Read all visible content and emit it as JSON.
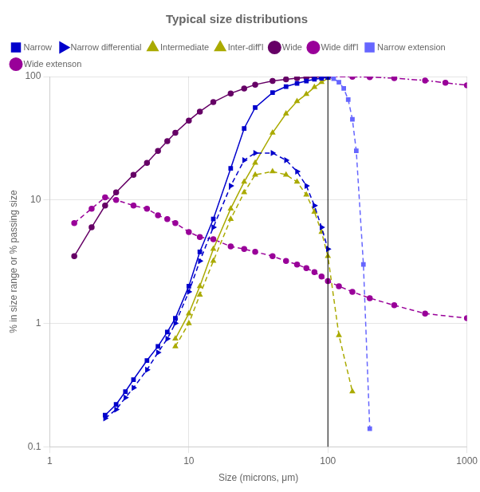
{
  "chart_data": {
    "type": "line",
    "title": "Typical size distributions",
    "x_label": "Size (microns, μm)",
    "y_label": "% in size range or % passing size",
    "log": true,
    "xlim": [
      1,
      1000
    ],
    "ylim": [
      0.1,
      100
    ],
    "xticks": [
      1,
      10,
      100,
      1000
    ],
    "yticks": [
      0.1,
      1,
      10,
      100
    ],
    "grid": true,
    "legend": "upper left",
    "vertical_lines": [
      100
    ],
    "series": [
      {
        "name": "Narrow",
        "color": "#0000cc",
        "line_style": "solid",
        "marker": "square",
        "x": [
          2.5,
          3,
          3.5,
          4,
          5,
          6,
          7,
          8,
          10,
          12,
          15,
          20,
          25,
          30,
          40,
          50,
          60,
          70,
          80,
          90,
          100
        ],
        "values": [
          0.18,
          0.22,
          0.28,
          0.35,
          0.5,
          0.65,
          0.85,
          1.1,
          2.0,
          3.8,
          7.0,
          18,
          38,
          56,
          74,
          83,
          88,
          92,
          95,
          97,
          98.5
        ]
      },
      {
        "name": "Narrow differential",
        "color": "#0000cc",
        "line_style": "dashed",
        "marker": "triangle_right",
        "x": [
          2.5,
          3,
          3.5,
          4,
          5,
          6,
          7,
          8,
          10,
          12,
          15,
          20,
          25,
          30,
          40,
          50,
          60,
          70,
          80,
          90,
          100
        ],
        "values": [
          0.17,
          0.2,
          0.25,
          0.3,
          0.42,
          0.58,
          0.75,
          1.0,
          1.8,
          3.2,
          6.0,
          13,
          21,
          24,
          24,
          21,
          17,
          13,
          9,
          6,
          4.0
        ]
      },
      {
        "name": "Intermediate",
        "color": "#aaaa00",
        "line_style": "solid",
        "marker": "triangle",
        "x": [
          8,
          10,
          12,
          15,
          20,
          25,
          30,
          40,
          50,
          60,
          70,
          80,
          90,
          100
        ],
        "values": [
          0.75,
          1.2,
          2.0,
          4.0,
          8.5,
          14,
          20,
          35,
          50,
          63,
          72,
          82,
          90,
          97
        ]
      },
      {
        "name": "Inter-diff'l",
        "color": "#aaaa00",
        "line_style": "dashed",
        "marker": "triangle",
        "x": [
          8,
          10,
          12,
          15,
          20,
          25,
          30,
          40,
          50,
          60,
          70,
          80,
          90,
          100,
          120,
          150
        ],
        "values": [
          0.65,
          1.0,
          1.7,
          3.2,
          7.0,
          11.5,
          16,
          17,
          16,
          14,
          11,
          8.0,
          5.5,
          3.5,
          0.8,
          0.28
        ]
      },
      {
        "name": "Wide",
        "color": "#660066",
        "line_style": "solid",
        "marker": "circle",
        "x": [
          1.5,
          2,
          2.5,
          3,
          4,
          5,
          6,
          7,
          8,
          10,
          12,
          15,
          20,
          25,
          30,
          40,
          50,
          60,
          70,
          80,
          90,
          100
        ],
        "values": [
          3.5,
          6.0,
          9.0,
          11.5,
          16,
          20,
          25,
          30,
          35,
          44,
          52,
          62,
          73,
          80,
          86,
          92,
          95,
          97,
          98,
          99,
          99.5,
          100
        ]
      },
      {
        "name": "Wide diff'l",
        "color": "#990099",
        "line_style": "dashed",
        "marker": "circle",
        "x": [
          1.5,
          2,
          2.5,
          3,
          4,
          5,
          6,
          7,
          8,
          10,
          12,
          15,
          20,
          25,
          30,
          40,
          50,
          60,
          70,
          80,
          90,
          100,
          120,
          150,
          200,
          300,
          500,
          1000
        ],
        "values": [
          6.5,
          8.5,
          10.5,
          10,
          9,
          8.5,
          7.5,
          7.0,
          6.5,
          5.5,
          5.0,
          4.8,
          4.2,
          4.0,
          3.8,
          3.5,
          3.2,
          3.0,
          2.8,
          2.6,
          2.4,
          2.2,
          2.0,
          1.8,
          1.6,
          1.4,
          1.2,
          1.1
        ]
      },
      {
        "name": "Narrow extension",
        "color": "#6666ff",
        "line_style": "dashed",
        "marker": "square",
        "x": [
          100,
          110,
          120,
          130,
          140,
          150,
          160,
          180,
          200
        ],
        "values": [
          98.5,
          96,
          90,
          80,
          65,
          45,
          25,
          3.0,
          0.14
        ]
      },
      {
        "name": "Wide extenson",
        "color": "#990099",
        "line_style": "dashdot",
        "marker": "circle",
        "x": [
          100,
          150,
          200,
          300,
          500,
          700,
          1000
        ],
        "values": [
          100,
          99.5,
          99,
          97,
          93,
          89,
          85
        ]
      }
    ]
  }
}
